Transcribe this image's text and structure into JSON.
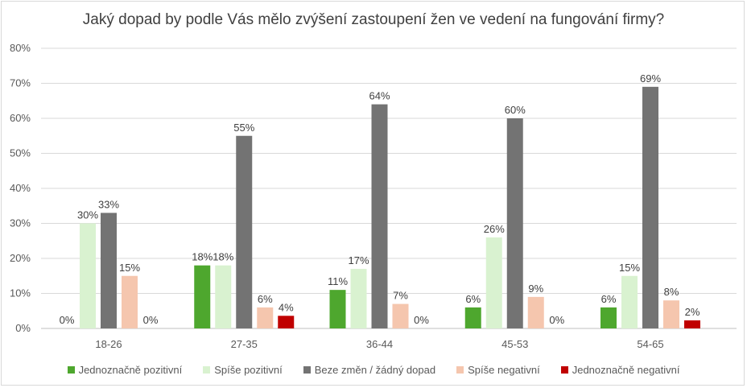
{
  "chart_data": {
    "type": "bar",
    "title": "Jaký dopad by podle Vás mělo zvýšení zastoupení žen ve vedení na fungování firmy?",
    "xlabel": "",
    "ylabel": "",
    "ylim": [
      0,
      80
    ],
    "yticks": [
      "0%",
      "10%",
      "20%",
      "30%",
      "40%",
      "50%",
      "60%",
      "70%",
      "80%"
    ],
    "grid": true,
    "legend_position": "bottom",
    "categories": [
      "18-26",
      "27-35",
      "36-44",
      "45-53",
      "54-65"
    ],
    "series": [
      {
        "name": "Jednoznačně pozitivní",
        "color": "#4ea72e",
        "values": [
          0,
          18,
          11,
          6,
          6
        ],
        "labels": [
          "0%",
          "18%",
          "11%",
          "6%",
          "6%"
        ]
      },
      {
        "name": "Spíše pozitivní",
        "color": "#d9f2d0",
        "values": [
          30,
          18,
          17,
          26,
          15
        ],
        "labels": [
          "30%",
          "18%",
          "17%",
          "26%",
          "15%"
        ]
      },
      {
        "name": "Beze změn / žádný dopad",
        "color": "#737373",
        "values": [
          33,
          55,
          64,
          60,
          69
        ],
        "labels": [
          "33%",
          "55%",
          "64%",
          "60%",
          "69%"
        ]
      },
      {
        "name": "Spíše negativní",
        "color": "#f5c6ae",
        "values": [
          15,
          6,
          7,
          9,
          8
        ],
        "labels": [
          "15%",
          "6%",
          "7%",
          "9%",
          "8%"
        ]
      },
      {
        "name": "Jednoznačně negativní",
        "color": "#c00000",
        "values": [
          0,
          3.6,
          0,
          0,
          2.3
        ],
        "labels": [
          "0%",
          "4%",
          "0%",
          "0%",
          "2%"
        ]
      }
    ]
  }
}
